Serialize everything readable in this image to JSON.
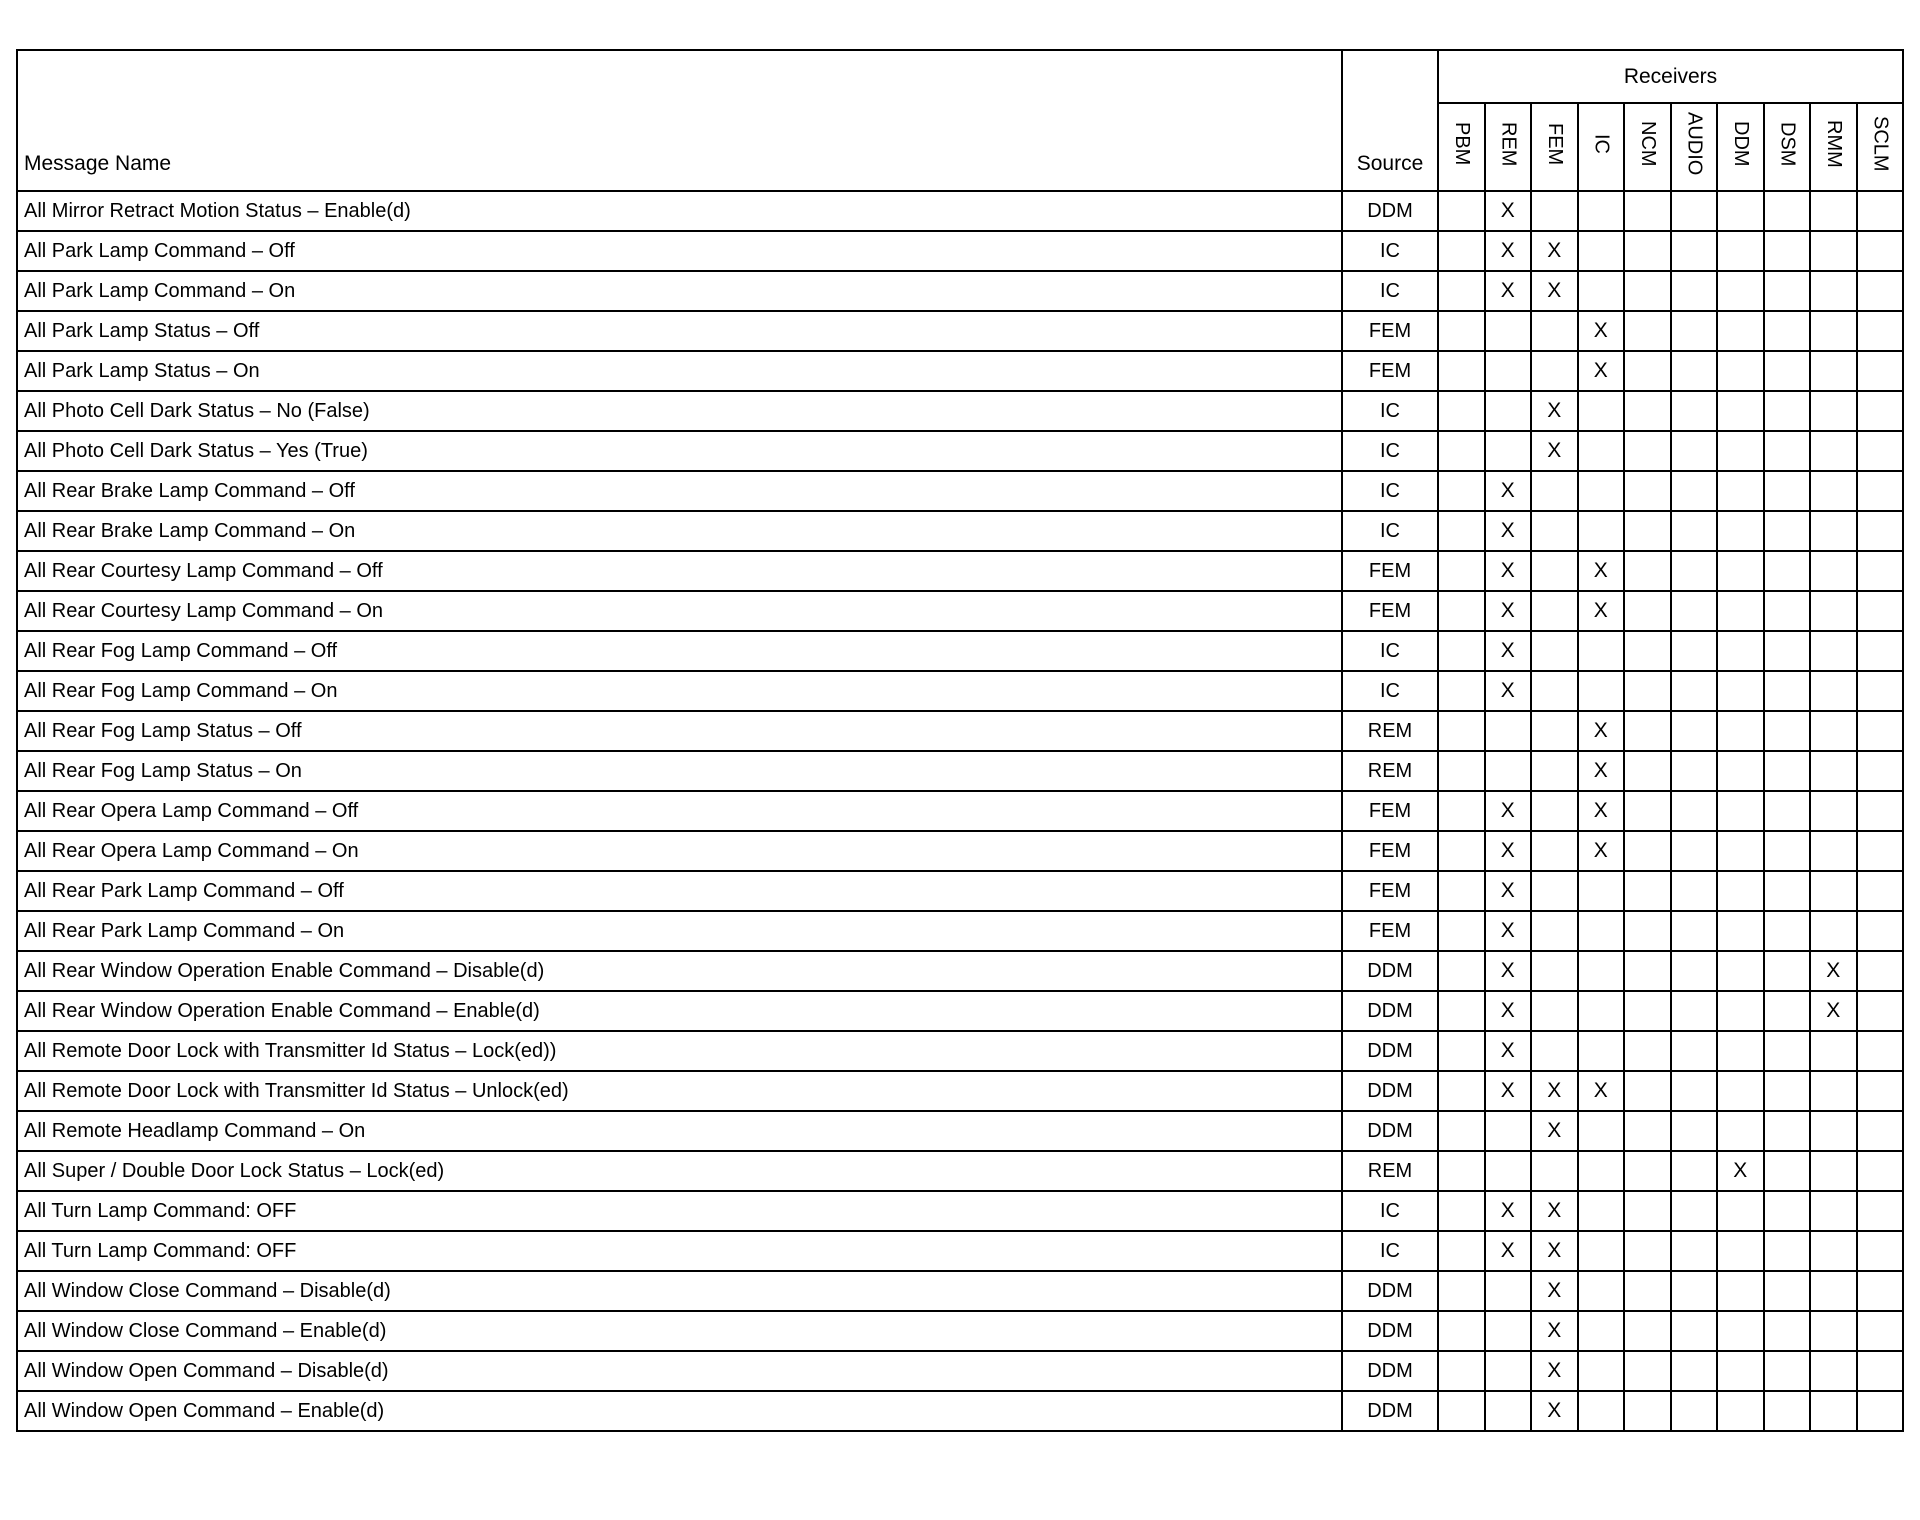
{
  "headers": {
    "message_name": "Message Name",
    "source": "Source",
    "receivers": "Receivers",
    "receiver_columns": [
      "PBM",
      "REM",
      "FEM",
      "IC",
      "NCM",
      "AUDIO",
      "DDM",
      "DSM",
      "RMM",
      "SCLM"
    ]
  },
  "mark": "X",
  "rows": [
    {
      "name": "All Mirror Retract Motion Status – Enable(d)",
      "source": "DDM",
      "receivers": [
        "REM"
      ]
    },
    {
      "name": "All Park Lamp Command – Off",
      "source": "IC",
      "receivers": [
        "REM",
        "FEM"
      ]
    },
    {
      "name": "All Park Lamp Command – On",
      "source": "IC",
      "receivers": [
        "REM",
        "FEM"
      ]
    },
    {
      "name": "All Park Lamp Status – Off",
      "source": "FEM",
      "receivers": [
        "IC"
      ]
    },
    {
      "name": "All Park Lamp Status – On",
      "source": "FEM",
      "receivers": [
        "IC"
      ]
    },
    {
      "name": "All Photo Cell Dark Status – No (False)",
      "source": "IC",
      "receivers": [
        "FEM"
      ]
    },
    {
      "name": "All Photo Cell Dark Status – Yes (True)",
      "source": "IC",
      "receivers": [
        "FEM"
      ]
    },
    {
      "name": "All Rear Brake Lamp Command – Off",
      "source": "IC",
      "receivers": [
        "REM"
      ]
    },
    {
      "name": "All Rear Brake Lamp Command – On",
      "source": "IC",
      "receivers": [
        "REM"
      ]
    },
    {
      "name": "All Rear Courtesy Lamp Command – Off",
      "source": "FEM",
      "receivers": [
        "REM",
        "IC"
      ]
    },
    {
      "name": "All Rear Courtesy Lamp Command – On",
      "source": "FEM",
      "receivers": [
        "REM",
        "IC"
      ]
    },
    {
      "name": "All Rear Fog Lamp Command – Off",
      "source": "IC",
      "receivers": [
        "REM"
      ]
    },
    {
      "name": "All Rear Fog Lamp Command – On",
      "source": "IC",
      "receivers": [
        "REM"
      ]
    },
    {
      "name": "All Rear Fog Lamp Status – Off",
      "source": "REM",
      "receivers": [
        "IC"
      ]
    },
    {
      "name": "All Rear Fog Lamp Status – On",
      "source": "REM",
      "receivers": [
        "IC"
      ]
    },
    {
      "name": "All Rear Opera Lamp Command – Off",
      "source": "FEM",
      "receivers": [
        "REM",
        "IC"
      ]
    },
    {
      "name": "All Rear Opera Lamp Command – On",
      "source": "FEM",
      "receivers": [
        "REM",
        "IC"
      ]
    },
    {
      "name": "All Rear Park Lamp Command – Off",
      "source": "FEM",
      "receivers": [
        "REM"
      ]
    },
    {
      "name": "All Rear Park Lamp Command – On",
      "source": "FEM",
      "receivers": [
        "REM"
      ]
    },
    {
      "name": "All Rear Window Operation Enable Command – Disable(d)",
      "source": "DDM",
      "receivers": [
        "REM",
        "RMM"
      ]
    },
    {
      "name": "All Rear Window Operation Enable Command – Enable(d)",
      "source": "DDM",
      "receivers": [
        "REM",
        "RMM"
      ]
    },
    {
      "name": "All Remote Door Lock with Transmitter Id Status – Lock(ed))",
      "source": "DDM",
      "receivers": [
        "REM"
      ]
    },
    {
      "name": "All Remote Door Lock with Transmitter Id Status – Unlock(ed)",
      "source": "DDM",
      "receivers": [
        "REM",
        "FEM",
        "IC"
      ]
    },
    {
      "name": "All Remote Headlamp Command – On",
      "source": "DDM",
      "receivers": [
        "FEM"
      ]
    },
    {
      "name": "All Super / Double Door Lock Status – Lock(ed)",
      "source": "REM",
      "receivers": [
        "DDM"
      ]
    },
    {
      "name": "All Turn Lamp Command: OFF",
      "source": "IC",
      "receivers": [
        "REM",
        "FEM"
      ]
    },
    {
      "name": "All Turn Lamp Command: OFF",
      "source": "IC",
      "receivers": [
        "REM",
        "FEM"
      ]
    },
    {
      "name": "All Window Close Command – Disable(d)",
      "source": "DDM",
      "receivers": [
        "FEM"
      ]
    },
    {
      "name": "All Window Close Command – Enable(d)",
      "source": "DDM",
      "receivers": [
        "FEM"
      ]
    },
    {
      "name": "All Window Open Command – Disable(d)",
      "source": "DDM",
      "receivers": [
        "FEM"
      ]
    },
    {
      "name": "All Window Open Command – Enable(d)",
      "source": "DDM",
      "receivers": [
        "FEM"
      ]
    }
  ]
}
